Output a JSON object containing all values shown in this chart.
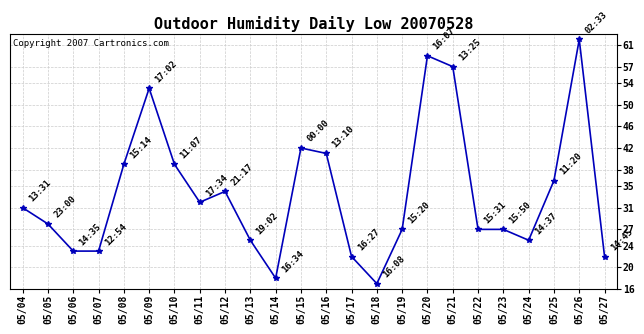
{
  "title": "Outdoor Humidity Daily Low 20070528",
  "copyright": "Copyright 2007 Cartronics.com",
  "background_color": "#ffffff",
  "line_color": "#0000bb",
  "marker_color": "#0000bb",
  "grid_color": "#cccccc",
  "title_fontsize": 11,
  "label_fontsize": 7,
  "annotation_fontsize": 6.5,
  "copyright_fontsize": 6.5,
  "dates": [
    "05/04",
    "05/05",
    "05/06",
    "05/07",
    "05/08",
    "05/09",
    "05/10",
    "05/11",
    "05/12",
    "05/13",
    "05/14",
    "05/15",
    "05/16",
    "05/17",
    "05/18",
    "05/19",
    "05/20",
    "05/21",
    "05/22",
    "05/23",
    "05/24",
    "05/25",
    "05/26",
    "05/27"
  ],
  "values": [
    31,
    28,
    23,
    23,
    39,
    53,
    39,
    32,
    34,
    25,
    18,
    42,
    41,
    22,
    17,
    27,
    59,
    57,
    27,
    27,
    25,
    36,
    62,
    22
  ],
  "times": [
    "13:31",
    "23:00",
    "14:35",
    "12:54",
    "15:14",
    "17:02",
    "11:07",
    "17:34",
    "21:17",
    "19:02",
    "16:34",
    "00:00",
    "13:10",
    "16:27",
    "16:08",
    "15:20",
    "16:07",
    "13:25",
    "15:31",
    "15:50",
    "14:37",
    "11:20",
    "02:33",
    "14:45"
  ],
  "ylim_min": 16,
  "ylim_max": 63,
  "yticks": [
    16,
    20,
    24,
    27,
    31,
    35,
    38,
    42,
    46,
    50,
    54,
    57,
    61
  ]
}
